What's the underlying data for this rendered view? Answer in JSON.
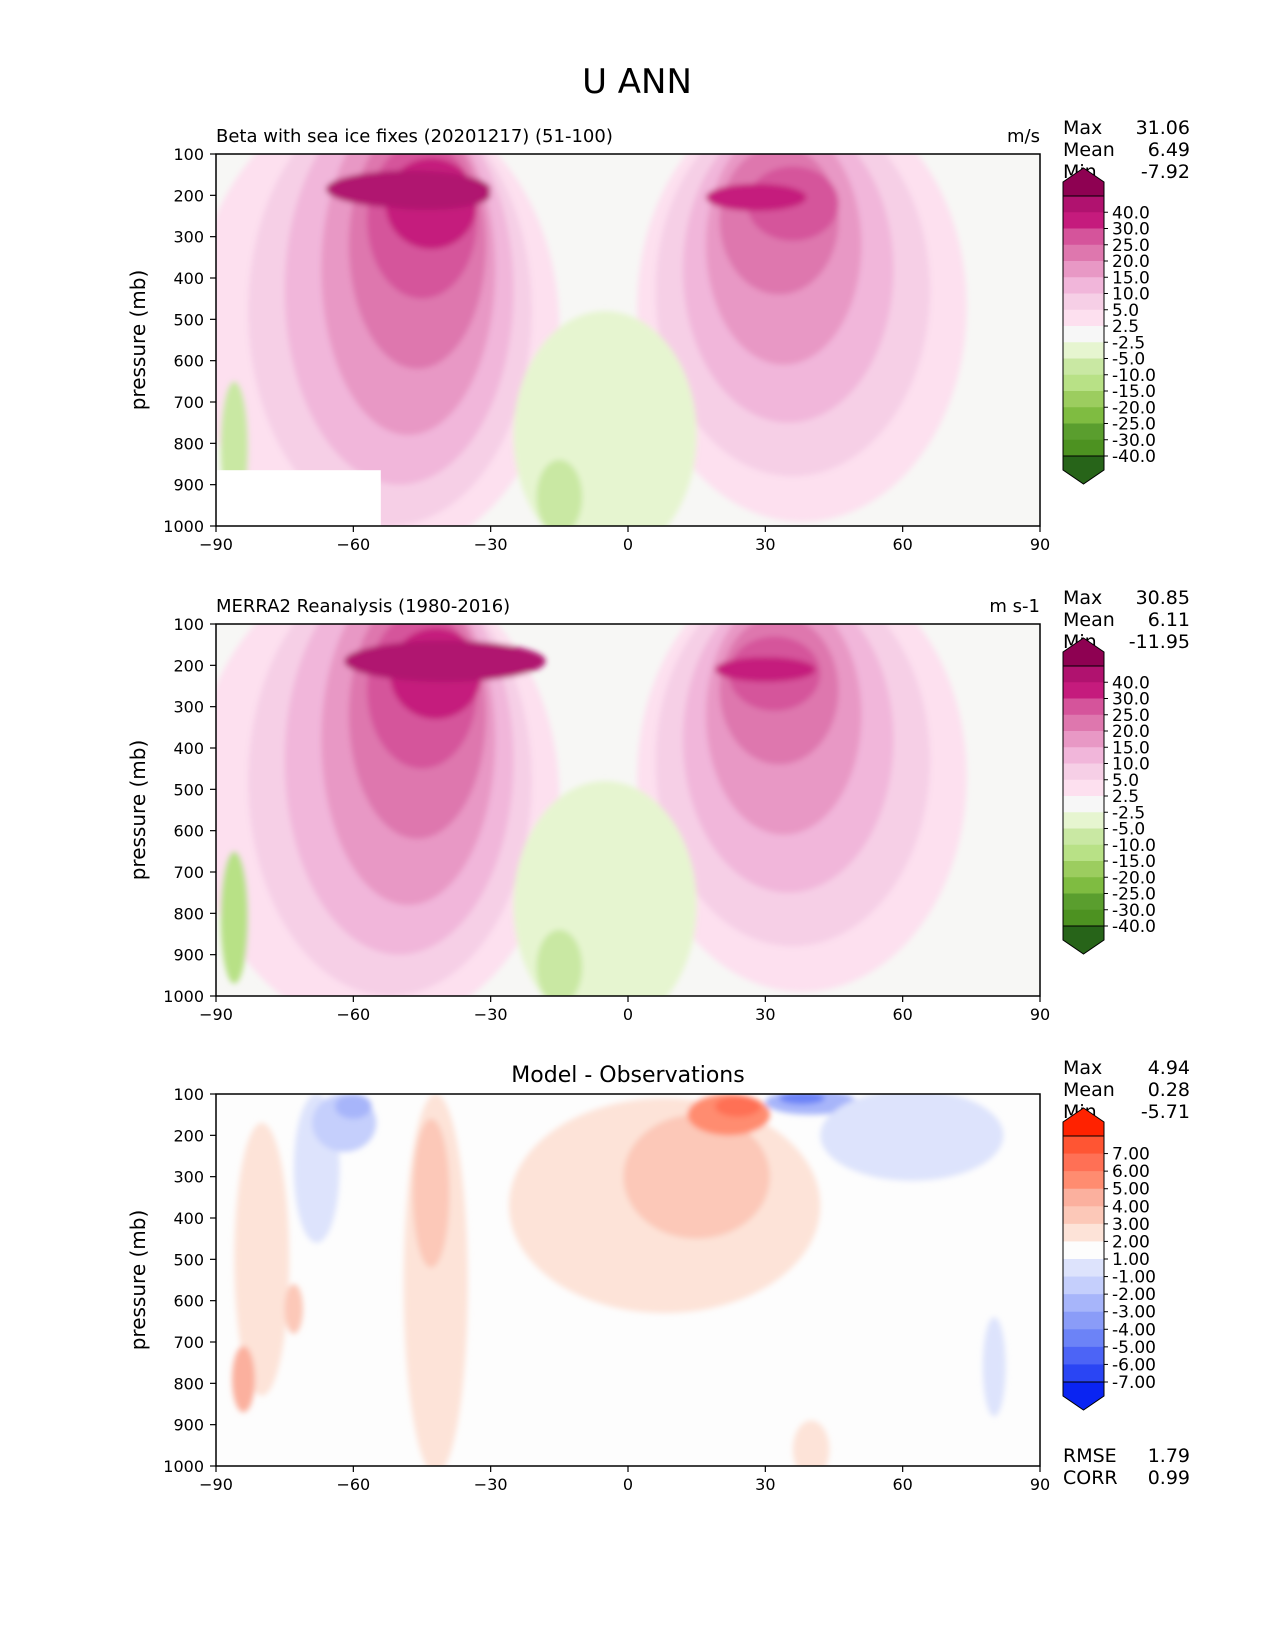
{
  "suptitle": "U ANN",
  "panels": [
    {
      "id": "model",
      "left_title": "Beta with sea ice fixes (20201217) (51-100)",
      "center_title": "",
      "units": "m/s",
      "stats": [
        [
          "Max",
          "31.06"
        ],
        [
          "Mean",
          "6.49"
        ],
        [
          "Min",
          "-7.92"
        ]
      ],
      "bottom_stats": []
    },
    {
      "id": "obs",
      "left_title": "MERRA2 Reanalysis (1980-2016)",
      "center_title": "",
      "units": "m s-1",
      "stats": [
        [
          "Max",
          "30.85"
        ],
        [
          "Mean",
          "6.11"
        ],
        [
          "Min",
          "-11.95"
        ]
      ],
      "bottom_stats": []
    },
    {
      "id": "diff",
      "left_title": "",
      "center_title": "Model - Observations",
      "units": "",
      "stats": [
        [
          "Max",
          "4.94"
        ],
        [
          "Mean",
          "0.28"
        ],
        [
          "Min",
          "-5.71"
        ]
      ],
      "bottom_stats": [
        [
          "RMSE",
          "1.79"
        ],
        [
          "CORR",
          "0.99"
        ]
      ]
    }
  ],
  "colorbars": {
    "field": {
      "labels": [
        "40.0",
        "30.0",
        "25.0",
        "20.0",
        "15.0",
        "10.0",
        "5.0",
        "2.5",
        "-2.5",
        "-5.0",
        "-10.0",
        "-15.0",
        "-20.0",
        "-25.0",
        "-30.0",
        "-40.0"
      ],
      "colors": [
        "#8e0152",
        "#b0126f",
        "#c51b7d",
        "#d5549b",
        "#de77ae",
        "#e898c5",
        "#f1b6da",
        "#f6cfe6",
        "#fde0ef",
        "#f7f7f7",
        "#e6f5d0",
        "#c9e8a3",
        "#b8e186",
        "#9ccd5f",
        "#7fbc41",
        "#5a9e2e",
        "#4d9221",
        "#276419"
      ]
    },
    "diff": {
      "labels": [
        "7.00",
        "6.00",
        "5.00",
        "4.00",
        "3.00",
        "2.00",
        "1.00",
        "-1.00",
        "-2.00",
        "-3.00",
        "-4.00",
        "-5.00",
        "-6.00",
        "-7.00"
      ],
      "colors": [
        "#ff2200",
        "#ff5533",
        "#ff7055",
        "#ff8c70",
        "#fbb09e",
        "#fcc8b8",
        "#fde3d8",
        "#fdfdfd",
        "#dde3fc",
        "#c5cffc",
        "#a7b5fa",
        "#8a9cf8",
        "#6c83f7",
        "#4c64f6",
        "#2a45f4",
        "#0a24f2"
      ]
    }
  },
  "chart_data": [
    {
      "type": "contour",
      "title": "Beta with sea ice fixes (20201217) (51-100)",
      "units": "m/s",
      "xlabel": "",
      "ylabel": "pressure (mb)",
      "xlim": [
        -90,
        90
      ],
      "ylim": [
        1000,
        100
      ],
      "xticks": [
        -90,
        -60,
        -30,
        0,
        30,
        60,
        90
      ],
      "yticks": [
        100,
        200,
        300,
        400,
        500,
        600,
        700,
        800,
        900,
        1000
      ],
      "levels": [
        -40,
        -30,
        -25,
        -20,
        -15,
        -10,
        -5,
        -2.5,
        2.5,
        5,
        10,
        15,
        20,
        25,
        30,
        40
      ],
      "features": [
        {
          "kind": "max",
          "lat": -42,
          "p": 195,
          "value": 31
        },
        {
          "kind": "max",
          "lat": 31,
          "p": 210,
          "value": 28
        },
        {
          "kind": "min",
          "lat": -85,
          "p": 850,
          "value": -8
        },
        {
          "kind": "min",
          "lat": -15,
          "p": 970,
          "value": -5
        }
      ],
      "stats": {
        "Max": 31.06,
        "Mean": 6.49,
        "Min": -7.92
      }
    },
    {
      "type": "contour",
      "title": "MERRA2 Reanalysis (1980-2016)",
      "units": "m s-1",
      "xlabel": "",
      "ylabel": "pressure (mb)",
      "xlim": [
        -90,
        90
      ],
      "ylim": [
        1000,
        100
      ],
      "xticks": [
        -90,
        -60,
        -30,
        0,
        30,
        60,
        90
      ],
      "yticks": [
        100,
        200,
        300,
        400,
        500,
        600,
        700,
        800,
        900,
        1000
      ],
      "levels": [
        -40,
        -30,
        -25,
        -20,
        -15,
        -10,
        -5,
        -2.5,
        2.5,
        5,
        10,
        15,
        20,
        25,
        30,
        40
      ],
      "features": [
        {
          "kind": "max",
          "lat": -34,
          "p": 195,
          "value": 31
        },
        {
          "kind": "max",
          "lat": 30,
          "p": 200,
          "value": 28
        },
        {
          "kind": "min",
          "lat": -84,
          "p": 850,
          "value": -12
        },
        {
          "kind": "min",
          "lat": -15,
          "p": 950,
          "value": -5
        }
      ],
      "stats": {
        "Max": 30.85,
        "Mean": 6.11,
        "Min": -11.95
      }
    },
    {
      "type": "contour",
      "title": "Model - Observations",
      "units": "",
      "xlabel": "",
      "ylabel": "pressure (mb)",
      "xlim": [
        -90,
        90
      ],
      "ylim": [
        1000,
        100
      ],
      "xticks": [
        -90,
        -60,
        -30,
        0,
        30,
        60,
        90
      ],
      "yticks": [
        100,
        200,
        300,
        400,
        500,
        600,
        700,
        800,
        900,
        1000
      ],
      "levels": [
        -7,
        -6,
        -5,
        -4,
        -3,
        -2,
        -1,
        1,
        2,
        3,
        4,
        5,
        6,
        7
      ],
      "features": [
        {
          "kind": "max",
          "lat": 22,
          "p": 130,
          "value": 5
        },
        {
          "kind": "min",
          "lat": 38,
          "p": 110,
          "value": -6
        },
        {
          "kind": "min",
          "lat": -62,
          "p": 130,
          "value": -5
        },
        {
          "kind": "max",
          "lat": -85,
          "p": 800,
          "value": 4
        }
      ],
      "stats": {
        "Max": 4.94,
        "Mean": 0.28,
        "Min": -5.71,
        "RMSE": 1.79,
        "CORR": 0.99
      }
    }
  ]
}
